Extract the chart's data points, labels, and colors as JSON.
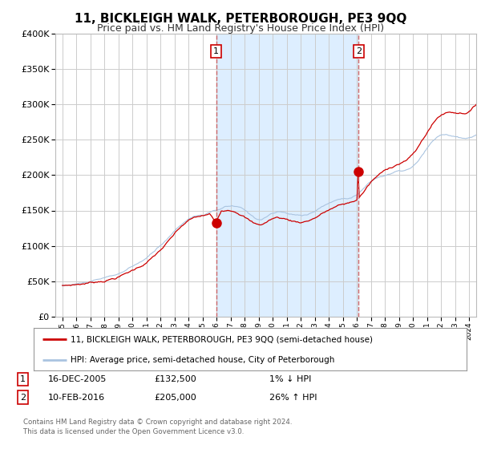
{
  "title": "11, BICKLEIGH WALK, PETERBOROUGH, PE3 9QQ",
  "subtitle": "Price paid vs. HM Land Registry's House Price Index (HPI)",
  "red_line_label": "11, BICKLEIGH WALK, PETERBOROUGH, PE3 9QQ (semi-detached house)",
  "blue_line_label": "HPI: Average price, semi-detached house, City of Peterborough",
  "footer": "Contains HM Land Registry data © Crown copyright and database right 2024.\nThis data is licensed under the Open Government Licence v3.0.",
  "sale1_label": "1",
  "sale1_date": "16-DEC-2005",
  "sale1_price": 132500,
  "sale1_note": "1% ↓ HPI",
  "sale1_year": 2005.958,
  "sale2_label": "2",
  "sale2_date": "10-FEB-2016",
  "sale2_price": 205000,
  "sale2_note": "26% ↑ HPI",
  "sale2_year": 2016.111,
  "ylim": [
    0,
    400000
  ],
  "xlim_start": 1994.5,
  "xlim_end": 2024.5,
  "background_color": "#ffffff",
  "grid_color": "#cccccc",
  "red_color": "#cc0000",
  "blue_color": "#aac4e0",
  "shade_color": "#ddeeff",
  "dashed_color": "#cc6666",
  "box_edge_color": "#cc0000",
  "title_fontsize": 11,
  "subtitle_fontsize": 9
}
